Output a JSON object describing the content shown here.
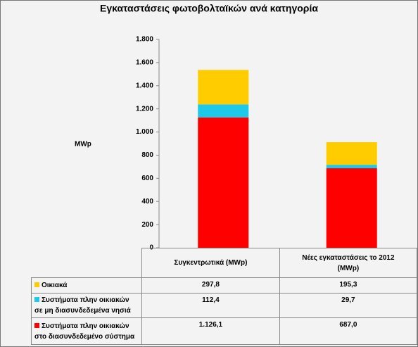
{
  "chart_data": {
    "type": "stacked_bar",
    "title": "Εγκαταστάσεις φωτοβολταϊκών ανά κατηγορία",
    "y_label": "MWp",
    "categories": [
      "Συγκεντρωτικά (MWp)",
      "Νέες εγκαταστάσεις το 2012 (MWp)"
    ],
    "series": [
      {
        "name": "Οικιακά",
        "color": "#ffcc00",
        "values": [
          297.8,
          195.3
        ],
        "value_labels": [
          "297,8",
          "195,3"
        ]
      },
      {
        "name": "Συστήματα πλην οικιακών σε μη διασυνδεδεμένα νησιά",
        "color": "#1ec8e8",
        "values": [
          112.4,
          29.7
        ],
        "value_labels": [
          "112,4",
          "29,7"
        ]
      },
      {
        "name": "Συστήματα πλην οικιακών στο διασυνδεδεμένο σύστημα",
        "color": "#ff0000",
        "values": [
          1126.1,
          687.0
        ],
        "value_labels": [
          "1.126,1",
          "687,0"
        ]
      }
    ],
    "ylim": [
      0,
      1800
    ],
    "yticks": [
      0,
      200,
      400,
      600,
      800,
      {
        "value": 1000,
        "label": "1.000"
      },
      {
        "value": 1200,
        "label": "1.200"
      },
      {
        "value": 1400,
        "label": "1.400"
      },
      {
        "value": 1600,
        "label": "1.600"
      },
      {
        "value": 1800,
        "label": "1.800"
      }
    ]
  }
}
